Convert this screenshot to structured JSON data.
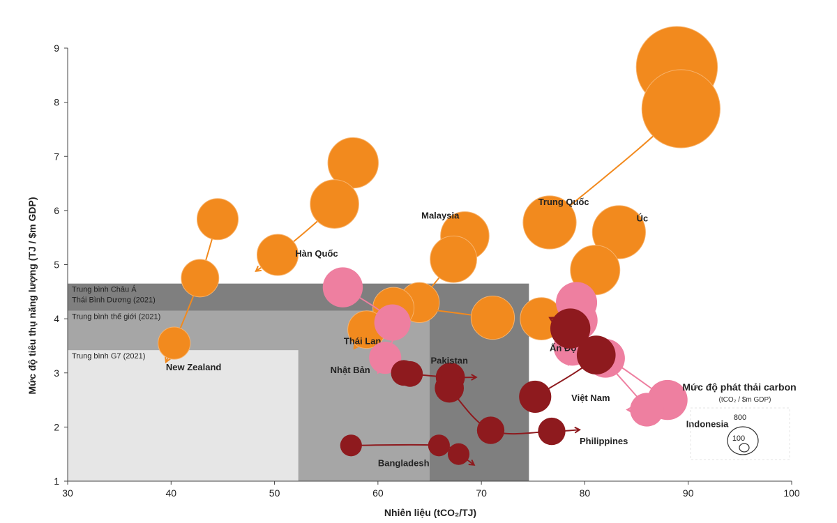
{
  "chart_data": {
    "type": "scatter",
    "title": "",
    "xlabel": "Nhiên liệu (tCO₂/TJ)",
    "ylabel": "Mức độ tiêu thụ năng lượng (TJ / $m GDP)",
    "xlim": [
      30,
      100
    ],
    "ylim": [
      1,
      9
    ],
    "xticks": [
      "30",
      "40",
      "50",
      "60",
      "70",
      "80",
      "90",
      "100"
    ],
    "yticks": [
      "1",
      "2",
      "3",
      "4",
      "5",
      "6",
      "7",
      "8",
      "9"
    ],
    "colors": {
      "orange": "#F28A1E",
      "pink": "#EE7FA0",
      "darkred": "#8E1A1E"
    },
    "benchmarks": [
      {
        "name": "Trung bình Châu Á Thái Bình Dương (2021)",
        "lines": [
          "Trung bình Châu Á",
          "Thái Bình Dương (2021)"
        ],
        "x": 74.6,
        "y": 4.65,
        "color": "#7F7F7F"
      },
      {
        "name": "Trung bình thế giới (2021)",
        "lines": [
          "Trung bình thế giới (2021)"
        ],
        "x": 65.0,
        "y": 4.15,
        "color": "#A6A6A6"
      },
      {
        "name": "Trung bình G7 (2021)",
        "lines": [
          "Trung bình G7 (2021)"
        ],
        "x": 52.3,
        "y": 3.42,
        "color": "#E6E6E6"
      }
    ],
    "series": [
      {
        "name": "Trung Quốc",
        "color": "orange",
        "points": [
          [
            88.9,
            8.65,
            700
          ],
          [
            89.3,
            7.88,
            650
          ],
          [
            76.6,
            5.78,
            300
          ]
        ],
        "arrow_to": [
          74.6,
          5.5
        ],
        "label_at": [
          75.5,
          6.1
        ]
      },
      {
        "name": "Hàn Quốc",
        "color": "orange",
        "points": [
          [
            57.6,
            6.88,
            270
          ],
          [
            55.8,
            6.12,
            250
          ],
          [
            50.3,
            5.18,
            180
          ]
        ],
        "arrow_to": [
          48.2,
          4.88
        ],
        "label_at": [
          52.0,
          5.15
        ]
      },
      {
        "name": "New Zealand",
        "color": "orange",
        "points": [
          [
            44.5,
            5.84,
            180
          ],
          [
            42.8,
            4.75,
            150
          ],
          [
            40.3,
            3.55,
            110
          ]
        ],
        "arrow_to": [
          39.5,
          3.2
        ],
        "label_at": [
          39.5,
          3.05
        ]
      },
      {
        "name": "Malaysia",
        "color": "orange",
        "points": [
          [
            68.4,
            5.53,
            250
          ],
          [
            67.3,
            5.1,
            230
          ],
          [
            64.0,
            4.3,
            170
          ]
        ],
        "arrow_to": [
          62.2,
          3.8
        ],
        "label_at": [
          64.2,
          5.85
        ]
      },
      {
        "name": "Úc",
        "color": "orange",
        "points": [
          [
            83.3,
            5.6,
            300
          ],
          [
            81.0,
            4.9,
            260
          ],
          [
            75.8,
            4.0,
            190
          ]
        ],
        "arrow_to": [
          74.3,
          3.75
        ],
        "label_at": [
          85.0,
          5.8
        ]
      },
      {
        "name": "Thái Lan",
        "color": "orange",
        "points": [
          [
            71.1,
            4.02,
            200
          ],
          [
            61.5,
            4.2,
            180
          ],
          [
            58.9,
            3.8,
            150
          ]
        ],
        "arrow_to": [
          57.7,
          3.45
        ],
        "label_at": [
          56.7,
          3.53
        ]
      },
      {
        "name": "Nhật Bản",
        "color": "pink",
        "points": [
          [
            56.6,
            4.58,
            170
          ],
          [
            61.4,
            3.93,
            140
          ],
          [
            60.7,
            3.28,
            110
          ]
        ],
        "arrow_to": [
          60.0,
          3.0
        ],
        "label_at": [
          55.4,
          3.0
        ]
      },
      {
        "name": "Ấn Độ",
        "color": "pink",
        "points": [
          [
            79.2,
            4.3,
            180
          ],
          [
            79.3,
            3.97,
            170
          ],
          [
            78.8,
            3.48,
            150
          ]
        ],
        "arrow_to": [
          78.4,
          3.15
        ],
        "label_at": [
          76.6,
          3.4
        ]
      },
      {
        "name": "Indonesia",
        "color": "pink",
        "points": [
          [
            88.0,
            2.5,
            170
          ],
          [
            82.0,
            3.27,
            160
          ],
          [
            86.0,
            2.32,
            120
          ]
        ],
        "arrow_to": [
          84.1,
          2.32
        ],
        "label_at": [
          89.8,
          2.0
        ]
      },
      {
        "name": "Pakistan",
        "color": "darkred",
        "points": [
          [
            62.5,
            3.0,
            70
          ],
          [
            63.1,
            2.98,
            70
          ],
          [
            67.0,
            2.92,
            90
          ]
        ],
        "arrow_to": [
          69.5,
          2.92
        ],
        "label_at": [
          65.1,
          3.17
        ]
      },
      {
        "name": "Philippines",
        "color": "darkred",
        "points": [
          [
            66.9,
            2.72,
            90
          ],
          [
            70.9,
            1.94,
            80
          ],
          [
            76.8,
            1.92,
            80
          ]
        ],
        "arrow_to": [
          79.5,
          1.95
        ],
        "label_at": [
          79.5,
          1.68
        ]
      },
      {
        "name": "Việt Nam",
        "color": "darkred",
        "points": [
          [
            75.2,
            2.56,
            110
          ],
          [
            81.1,
            3.33,
            160
          ],
          [
            78.6,
            3.82,
            170
          ]
        ],
        "arrow_to": [
          76.6,
          4.02
        ],
        "label_at": [
          78.7,
          2.48
        ]
      },
      {
        "name": "Bangladesh",
        "color": "darkred",
        "points": [
          [
            57.4,
            1.66,
            50
          ],
          [
            65.9,
            1.66,
            50
          ],
          [
            67.8,
            1.5,
            50
          ]
        ],
        "arrow_to": [
          69.3,
          1.3
        ],
        "label_at": [
          60.0,
          1.28
        ]
      }
    ],
    "size_legend": {
      "title": "Mức độ phát thải carbon",
      "subtitle": "(tCO₂ / $m GDP)",
      "values": [
        800,
        100
      ],
      "labels": [
        "800",
        "100"
      ]
    }
  }
}
